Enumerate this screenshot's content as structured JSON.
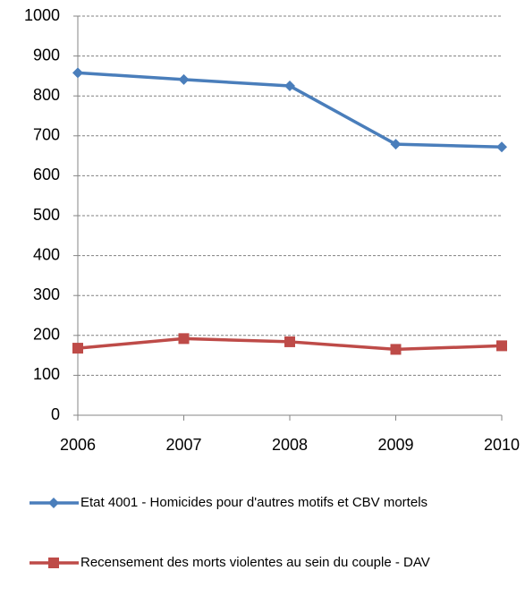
{
  "chart_data": {
    "type": "line",
    "x": [
      2006,
      2007,
      2008,
      2009,
      2010
    ],
    "xlim": [
      2006,
      2010
    ],
    "xticks": [
      2006,
      2007,
      2008,
      2009,
      2010
    ],
    "ylim": [
      0,
      1000
    ],
    "yticks": [
      0,
      100,
      200,
      300,
      400,
      500,
      600,
      700,
      800,
      900,
      1000
    ],
    "grid": true,
    "legend": "bottom",
    "series": [
      {
        "name": "Etat 4001 - Homicides pour d'autres motifs et CBV mortels",
        "color": "#4a7ebb",
        "marker": "diamond",
        "values": [
          858,
          841,
          825,
          679,
          672
        ]
      },
      {
        "name": "Recensement des morts violentes au sein du couple - DAV",
        "color": "#be4b48",
        "marker": "square",
        "values": [
          168,
          192,
          184,
          165,
          174
        ]
      }
    ]
  }
}
